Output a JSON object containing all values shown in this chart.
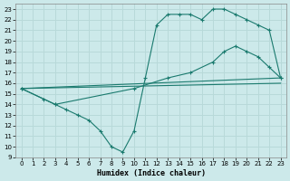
{
  "xlabel": "Humidex (Indice chaleur)",
  "xlim": [
    -0.5,
    23.5
  ],
  "ylim": [
    9,
    23.5
  ],
  "xticks": [
    0,
    1,
    2,
    3,
    4,
    5,
    6,
    7,
    8,
    9,
    10,
    11,
    12,
    13,
    14,
    15,
    16,
    17,
    18,
    19,
    20,
    21,
    22,
    23
  ],
  "yticks": [
    9,
    10,
    11,
    12,
    13,
    14,
    15,
    16,
    17,
    18,
    19,
    20,
    21,
    22,
    23
  ],
  "bg_color": "#cce9ea",
  "line_color": "#1a7a6e",
  "grid_color": "#b8d9d9",
  "curves": [
    {
      "x": [
        0,
        23
      ],
      "y": [
        15.5,
        16.0
      ],
      "has_markers": false
    },
    {
      "x": [
        0,
        3,
        10,
        13,
        15,
        17,
        18,
        19,
        20,
        21,
        22,
        23
      ],
      "y": [
        15.5,
        14.0,
        15.5,
        16.5,
        17.0,
        18.0,
        19.0,
        19.5,
        19.0,
        18.5,
        17.5,
        16.5
      ],
      "has_markers": true
    },
    {
      "x": [
        0,
        2,
        3,
        4,
        5,
        6,
        7,
        8,
        9,
        10,
        11,
        12,
        13,
        14,
        15,
        16,
        17,
        18,
        19,
        20,
        21,
        22,
        23
      ],
      "y": [
        15.5,
        14.5,
        14.0,
        13.5,
        13.0,
        12.5,
        11.5,
        10.0,
        9.5,
        11.5,
        16.5,
        21.5,
        22.5,
        22.5,
        22.5,
        22.0,
        23.0,
        23.0,
        22.5,
        22.0,
        21.5,
        21.0,
        16.5
      ],
      "has_markers": true
    },
    {
      "x": [
        0,
        23
      ],
      "y": [
        15.5,
        16.5
      ],
      "has_markers": false
    }
  ]
}
